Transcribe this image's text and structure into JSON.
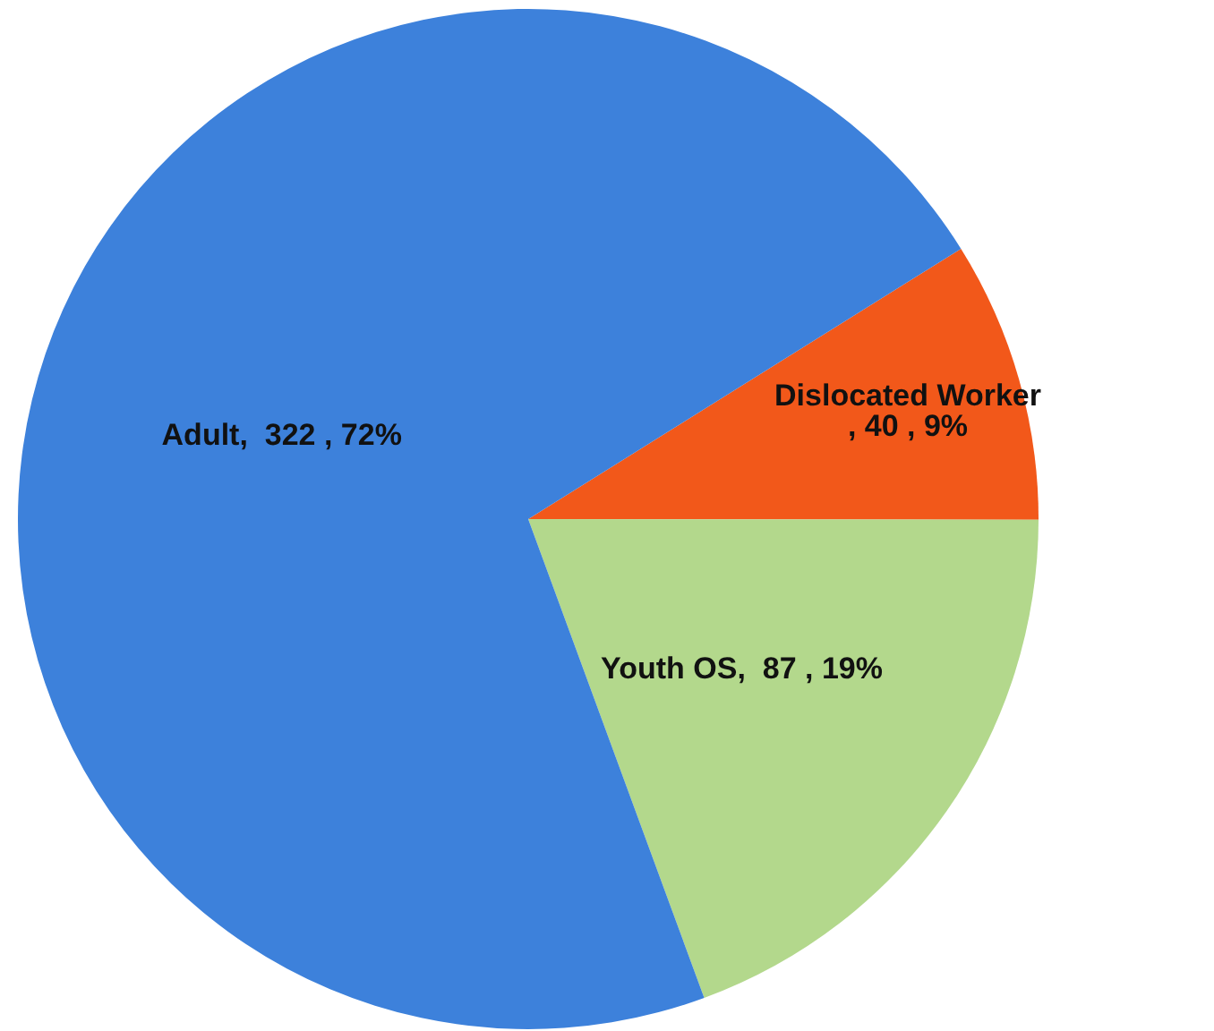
{
  "chart_data": {
    "type": "pie",
    "categories": [
      "Dislocated Worker",
      "Youth OS",
      "Adult"
    ],
    "values": [
      40,
      87,
      322
    ],
    "value_labels": [
      ", 40 , 9%",
      ",  87 , 19%",
      ",  322 , 72%"
    ],
    "colors": [
      "#f2581a",
      "#b3d88c",
      "#3d81db"
    ]
  }
}
